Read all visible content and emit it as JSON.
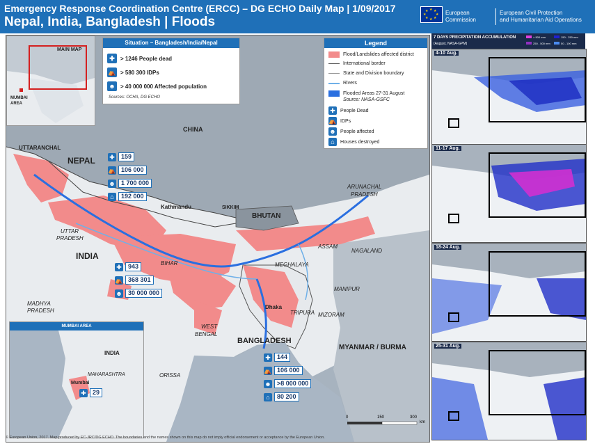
{
  "header": {
    "line1": "Emergency Response Coordination Centre (ERCC) – DG ECHO Daily Map | 1/09/2017",
    "line2": "Nepal, India, Bangladesh | Floods",
    "ec_name_1": "European",
    "ec_name_2": "Commission",
    "ec_dept_1": "European Civil Protection",
    "ec_dept_2": "and Humanitarian Aid Operations"
  },
  "main_map_inset": {
    "title": "MAIN MAP",
    "mumbai": "MUMBAI",
    "area": "AREA"
  },
  "situation": {
    "title": "Situation – Bangladesh/India/Nepal",
    "rows": [
      {
        "icon": "people-dead-icon",
        "text": "> 1246 People dead"
      },
      {
        "icon": "idps-icon",
        "text": "> 580 300 IDPs"
      },
      {
        "icon": "people-affected-icon",
        "text": "> 40 000 000 Affected population"
      }
    ],
    "sources": "Sources: OCHA, DG ECHO"
  },
  "legend": {
    "title": "Legend",
    "rows": [
      {
        "label": "Flood/Landslides affected district",
        "color": "#f28b8b"
      },
      {
        "label": "International border",
        "color": "#555555"
      },
      {
        "label": "State and Division boundary",
        "color": "#999999"
      },
      {
        "label": "Rivers",
        "color": "#6fb0e8"
      },
      {
        "label": "Flooded Areas 27-31 August",
        "color": "#2a6fe0"
      },
      {
        "label": "Source: NASA-GSFC",
        "color": ""
      },
      {
        "label": "People Dead",
        "color": "#1f70b8"
      },
      {
        "label": "IDPs",
        "color": "#1f70b8"
      },
      {
        "label": "People affected",
        "color": "#1f70b8"
      },
      {
        "label": "Houses destroyed",
        "color": "#1f70b8"
      }
    ]
  },
  "places": {
    "china": "CHINA",
    "nepal": "NEPAL",
    "uttaranchal": "UTTARANCHAL",
    "india": "INDIA",
    "uttar_pradesh_1": "UTTAR",
    "uttar_pradesh_2": "PRADESH",
    "bihar": "BIHAR",
    "kathmandu": "Kathmandu",
    "sikkim": "SIKKIM",
    "bhutan": "BHUTAN",
    "arunachal_1": "ARUNACHAL",
    "arunachal_2": "PRADESH",
    "assam": "ASSAM",
    "nagaland": "NAGALAND",
    "meghalaya": "MEGHALAYA",
    "manipur": "MANIPUR",
    "dhaka": "Dhaka",
    "tripura": "TRIPURA",
    "mizoram": "MIZORAM",
    "madhya_1": "MADHYA",
    "madhya_2": "PRADESH",
    "west_bengal_1": "WEST",
    "west_bengal_2": "BENGAL",
    "bangladesh": "BANGLADESH",
    "myanmar": "MYANMAR / BURMA",
    "orissa": "ORISSA",
    "maharashtra": "MAHARASHTRA",
    "mumbai": "Mumbai",
    "india_inset": "INDIA"
  },
  "nepal_stats": [
    "159",
    "106 000",
    "1 700 000",
    "192 000"
  ],
  "india_stats": [
    "943",
    "368 301",
    "30 000 000"
  ],
  "bangladesh_stats": [
    "144",
    "106 000",
    ">8 000 000",
    "80 200"
  ],
  "mumbai_inset": {
    "title": "MUMBAI AREA",
    "dead": "29"
  },
  "scale": {
    "s0": "0",
    "s1": "150",
    "s2": "300",
    "unit": "km"
  },
  "footer": "© European Union, 2017. Map produced by EC-JRC/DG ECHO. The boundaries and the names shown on this map do not imply official endorsement or acceptance by the European Union.",
  "precip": {
    "title": "7 DAYS PRECIPITATION ACCUMULATION",
    "subtitle": "(August, NASA-GPM)",
    "legend": [
      "> 500 mm",
      "150 - 250 mm",
      "250 - 500 mm",
      "50 - 100 mm"
    ],
    "panels": [
      "4-10 Aug.",
      "11-17 Aug.",
      "18-24 Aug.",
      "25-31 Aug."
    ]
  }
}
